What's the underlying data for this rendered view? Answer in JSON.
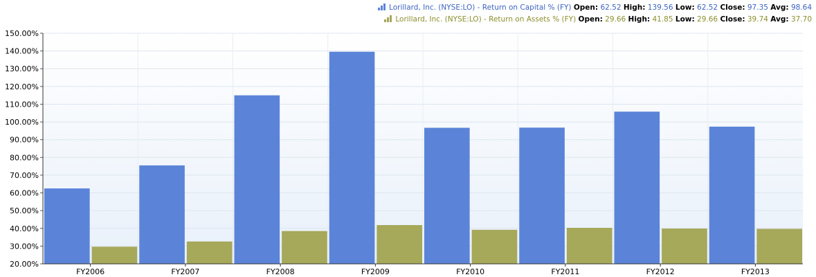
{
  "legend": [
    {
      "name": "Lorillard, Inc. (NYSE:LO) - Return on Capital % (FY)",
      "color": "#5b84d8",
      "open_label": "Open:",
      "open": "62.52",
      "high_label": "High:",
      "high": "139.56",
      "low_label": "Low:",
      "low": "62.52",
      "close_label": "Close:",
      "close": "97.35",
      "avg_label": "Avg:",
      "avg": "98.64"
    },
    {
      "name": "Lorillard, Inc. (NYSE:LO) - Return on Assets % (FY)",
      "color": "#a6a85a",
      "open_label": "Open:",
      "open": "29.66",
      "high_label": "High:",
      "high": "41.85",
      "low_label": "Low:",
      "low": "29.66",
      "close_label": "Close:",
      "close": "39.74",
      "avg_label": "Avg:",
      "avg": "37.70"
    }
  ],
  "chart_data": {
    "type": "bar",
    "categories": [
      "FY2006",
      "FY2007",
      "FY2008",
      "FY2009",
      "FY2010",
      "FY2011",
      "FY2012",
      "FY2013"
    ],
    "series": [
      {
        "name": "Lorillard, Inc. (NYSE:LO) - Return on Capital % (FY)",
        "color": "#5b84d8",
        "values": [
          62.52,
          75.5,
          115.0,
          139.56,
          96.7,
          96.8,
          105.8,
          97.35
        ]
      },
      {
        "name": "Lorillard, Inc. (NYSE:LO) - Return on Assets % (FY)",
        "color": "#a6a85a",
        "values": [
          29.66,
          32.6,
          38.5,
          41.85,
          39.2,
          40.3,
          39.9,
          39.74
        ]
      }
    ],
    "ylim": [
      20,
      150
    ],
    "yticks": [
      "20.00%",
      "30.00%",
      "40.00%",
      "50.00%",
      "60.00%",
      "70.00%",
      "80.00%",
      "90.00%",
      "100.00%",
      "110.00%",
      "120.00%",
      "130.00%",
      "140.00%",
      "150.00%"
    ],
    "grid": true,
    "legend_position": "top-right",
    "title": "",
    "xlabel": "",
    "ylabel": ""
  }
}
